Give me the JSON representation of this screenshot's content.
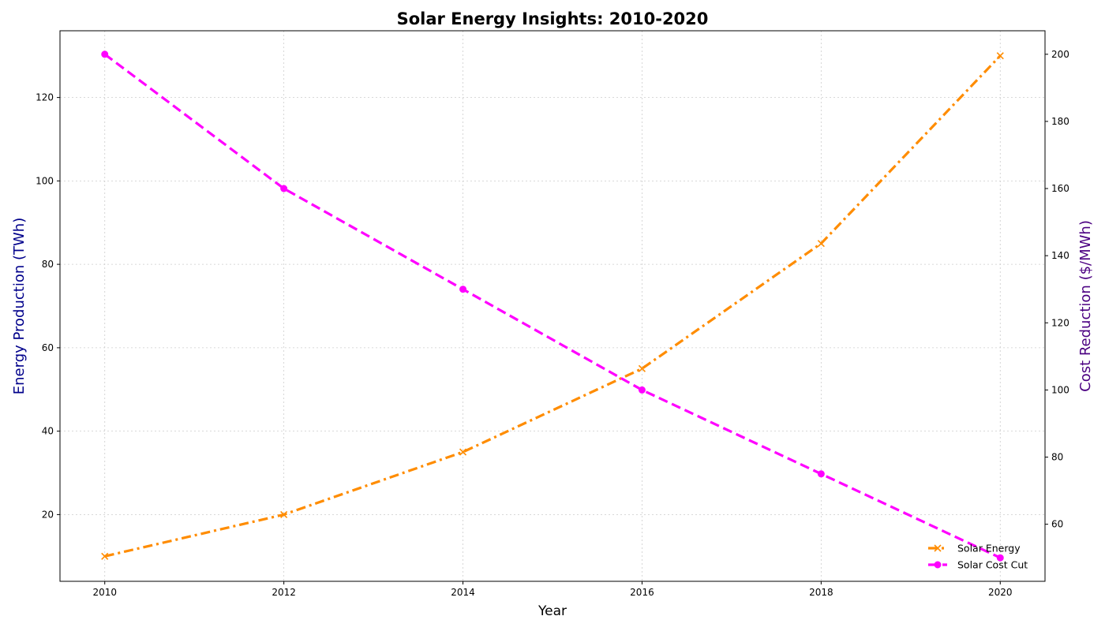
{
  "chart_data": {
    "type": "line",
    "title": "Solar Energy Insights: 2010-2020",
    "xlabel": "Year",
    "ylabel_left": "Energy Production (TWh)",
    "ylabel_right": "Cost Reduction ($/MWh)",
    "x": [
      2010,
      2012,
      2014,
      2016,
      2018,
      2020
    ],
    "x_ticks": [
      "2010",
      "2012",
      "2014",
      "2016",
      "2018",
      "2020"
    ],
    "xlim": [
      2009.5,
      2020.5
    ],
    "ylim_left": [
      4,
      136
    ],
    "ylim_right": [
      43,
      207
    ],
    "y_ticks_left": [
      "20",
      "40",
      "60",
      "80",
      "100",
      "120"
    ],
    "y_ticks_right": [
      "60",
      "80",
      "100",
      "120",
      "140",
      "160",
      "180",
      "200"
    ],
    "grid": true,
    "legend_position": "bottom-right",
    "series": [
      {
        "name": "Solar Energy",
        "axis": "left",
        "values": [
          10,
          20,
          35,
          55,
          85,
          130
        ],
        "color": "#ff8c00",
        "line_style": "dash-dot",
        "marker": "x"
      },
      {
        "name": "Solar Cost Cut",
        "axis": "right",
        "values": [
          200,
          160,
          130,
          100,
          75,
          50
        ],
        "color": "#ff00ff",
        "line_style": "dashed",
        "marker": "circle"
      }
    ]
  }
}
